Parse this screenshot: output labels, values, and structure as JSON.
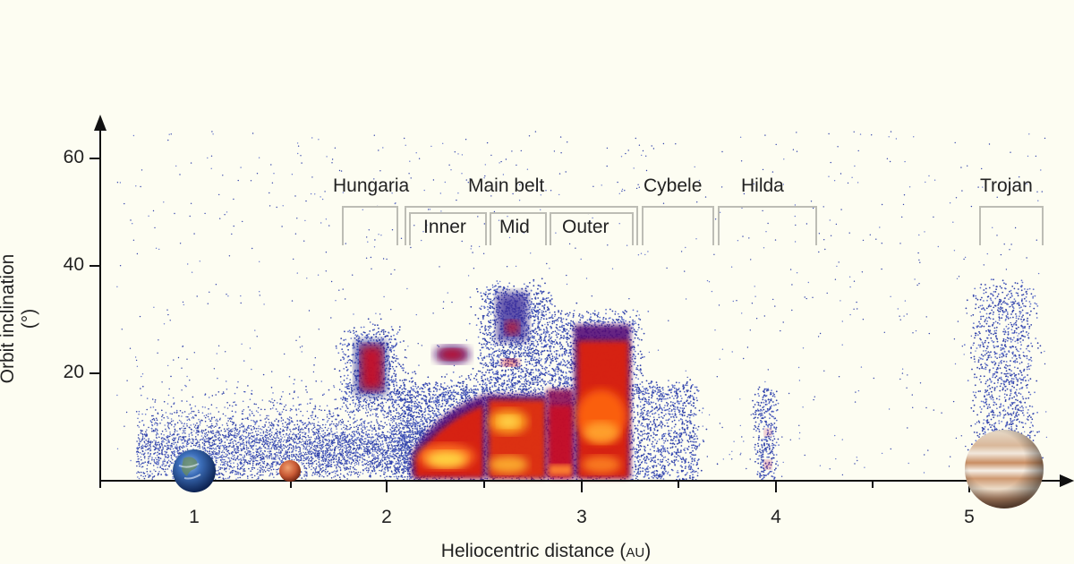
{
  "chart_data": {
    "type": "heatmap",
    "title": "",
    "xlabel": "Heliocentric distance",
    "xlabel_unit": "AU",
    "ylabel": "Orbit inclination (°)",
    "xlim": [
      0.5,
      5.5
    ],
    "ylim": [
      0,
      65
    ],
    "x_ticks": [
      1,
      2,
      3,
      4,
      5
    ],
    "y_ticks": [
      20,
      40,
      60
    ],
    "grid": false,
    "colormap": [
      "#2233aa",
      "#551177",
      "#cc1122",
      "#ff6611",
      "#ffdd33"
    ],
    "regions": [
      {
        "name": "Hungaria",
        "a_range": [
          1.78,
          2.06
        ],
        "inc_range": [
          15,
          27
        ],
        "density": "medium"
      },
      {
        "name": "Main belt",
        "a_range": [
          2.1,
          3.3
        ],
        "sub_regions": [
          {
            "name": "Inner",
            "a_range": [
              2.1,
              2.5
            ],
            "inc_range": [
              0,
              15
            ],
            "density": "very high"
          },
          {
            "name": "Mid",
            "a_range": [
              2.5,
              2.82
            ],
            "inc_range": [
              0,
              35
            ],
            "density": "very high"
          },
          {
            "name": "Outer",
            "a_range": [
              2.82,
              3.3
            ],
            "inc_range": [
              0,
              30
            ],
            "density": "high"
          }
        ]
      },
      {
        "name": "Cybele",
        "a_range": [
          3.3,
          3.7
        ],
        "inc_range": [
          0,
          18
        ],
        "density": "low"
      },
      {
        "name": "Hilda",
        "a_range": [
          3.7,
          4.2
        ],
        "inc_range": [
          0,
          17
        ],
        "density": "low",
        "core_a": 3.97
      },
      {
        "name": "Trojan",
        "a_range": [
          5.05,
          5.35
        ],
        "inc_range": [
          0,
          40
        ],
        "density": "medium",
        "core_a": 5.2
      }
    ],
    "planets": [
      {
        "name": "Earth",
        "a": 1.0
      },
      {
        "name": "Mars",
        "a": 1.52
      },
      {
        "name": "Jupiter",
        "a": 5.2
      }
    ],
    "annotations": [
      "Hungaria",
      "Main belt",
      "Inner",
      "Mid",
      "Outer",
      "Cybele",
      "Hilda",
      "Trojan"
    ]
  },
  "labels": {
    "hungaria": "Hungaria",
    "main_belt": "Main belt",
    "inner": "Inner",
    "mid": "Mid",
    "outer": "Outer",
    "cybele": "Cybele",
    "hilda": "Hilda",
    "trojan": "Trojan"
  },
  "axes": {
    "ylabel": "Orbit inclination (°)",
    "xlabel": "Heliocentric distance (",
    "xlabel_unit": "AU",
    "xlabel_close": ")",
    "yticks": [
      "60",
      "40",
      "20"
    ],
    "xticks": [
      "1",
      "2",
      "3",
      "4",
      "5"
    ]
  }
}
